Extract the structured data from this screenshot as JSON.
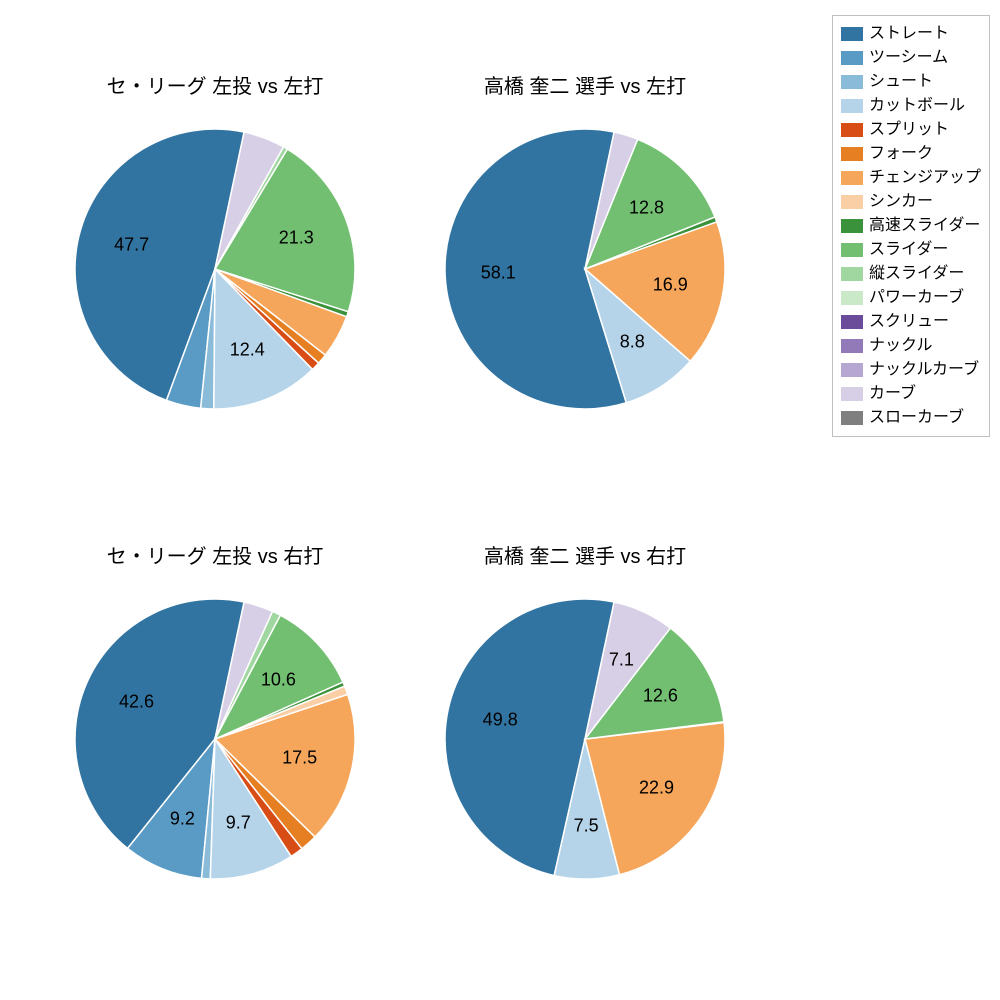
{
  "legend": {
    "items": [
      {
        "label": "ストレート",
        "color": "#3274a1"
      },
      {
        "label": "ツーシーム",
        "color": "#5a9bc5"
      },
      {
        "label": "シュート",
        "color": "#8abbd9"
      },
      {
        "label": "カットボール",
        "color": "#b5d4ea"
      },
      {
        "label": "スプリット",
        "color": "#d84c15"
      },
      {
        "label": "フォーク",
        "color": "#e67e22"
      },
      {
        "label": "チェンジアップ",
        "color": "#f5a65b"
      },
      {
        "label": "シンカー",
        "color": "#fbcfa5"
      },
      {
        "label": "高速スライダー",
        "color": "#3a923a"
      },
      {
        "label": "スライダー",
        "color": "#72bf72"
      },
      {
        "label": "縦スライダー",
        "color": "#a0d6a0"
      },
      {
        "label": "パワーカーブ",
        "color": "#c9e9c9"
      },
      {
        "label": "スクリュー",
        "color": "#6b4c9a"
      },
      {
        "label": "ナックル",
        "color": "#9279b7"
      },
      {
        "label": "ナックルカーブ",
        "color": "#b6a7d2"
      },
      {
        "label": "カーブ",
        "color": "#d6cfe6"
      },
      {
        "label": "スローカーブ",
        "color": "#7f7f7f"
      }
    ],
    "border_color": "#bfbfbf",
    "fontsize": 16
  },
  "charts": [
    {
      "title": "セ・リーグ 左投 vs 左打",
      "type": "pie",
      "startAngleDeg": 78,
      "slices": [
        {
          "value": 47.7,
          "color": "#3274a1",
          "label": "47.7",
          "showLabel": true
        },
        {
          "value": 4.0,
          "color": "#5a9bc5",
          "showLabel": false
        },
        {
          "value": 1.5,
          "color": "#8abbd9",
          "showLabel": false
        },
        {
          "value": 12.4,
          "color": "#b5d4ea",
          "label": "12.4",
          "showLabel": true
        },
        {
          "value": 1.0,
          "color": "#d84c15",
          "showLabel": false
        },
        {
          "value": 1.2,
          "color": "#e67e22",
          "showLabel": false
        },
        {
          "value": 5.0,
          "color": "#f5a65b",
          "showLabel": false
        },
        {
          "value": 0.6,
          "color": "#3a923a",
          "showLabel": false
        },
        {
          "value": 21.3,
          "color": "#72bf72",
          "label": "21.3",
          "showLabel": true
        },
        {
          "value": 0.5,
          "color": "#a0d6a0",
          "showLabel": false
        },
        {
          "value": 4.8,
          "color": "#d6cfe6",
          "showLabel": false
        }
      ]
    },
    {
      "title": "高橋 奎二 選手 vs 左打",
      "type": "pie",
      "startAngleDeg": 78,
      "slices": [
        {
          "value": 58.1,
          "color": "#3274a1",
          "label": "58.1",
          "showLabel": true
        },
        {
          "value": 8.8,
          "color": "#b5d4ea",
          "label": "8.8",
          "showLabel": true
        },
        {
          "value": 16.9,
          "color": "#f5a65b",
          "label": "16.9",
          "showLabel": true
        },
        {
          "value": 0.6,
          "color": "#3a923a",
          "showLabel": false
        },
        {
          "value": 12.8,
          "color": "#72bf72",
          "label": "12.8",
          "showLabel": true
        },
        {
          "value": 2.8,
          "color": "#d6cfe6",
          "showLabel": false
        }
      ]
    },
    {
      "title": "セ・リーグ 左投 vs 右打",
      "type": "pie",
      "startAngleDeg": 78,
      "slices": [
        {
          "value": 42.6,
          "color": "#3274a1",
          "label": "42.6",
          "showLabel": true
        },
        {
          "value": 9.2,
          "color": "#5a9bc5",
          "label": "9.2",
          "showLabel": true
        },
        {
          "value": 1.0,
          "color": "#8abbd9",
          "showLabel": false
        },
        {
          "value": 9.7,
          "color": "#b5d4ea",
          "label": "9.7",
          "showLabel": true
        },
        {
          "value": 1.5,
          "color": "#d84c15",
          "showLabel": false
        },
        {
          "value": 2.0,
          "color": "#e67e22",
          "showLabel": false
        },
        {
          "value": 17.5,
          "color": "#f5a65b",
          "label": "17.5",
          "showLabel": true
        },
        {
          "value": 1.0,
          "color": "#fbcfa5",
          "showLabel": false
        },
        {
          "value": 0.5,
          "color": "#3a923a",
          "showLabel": false
        },
        {
          "value": 10.6,
          "color": "#72bf72",
          "label": "10.6",
          "showLabel": true
        },
        {
          "value": 1.0,
          "color": "#a0d6a0",
          "showLabel": false
        },
        {
          "value": 3.4,
          "color": "#d6cfe6",
          "showLabel": false
        }
      ]
    },
    {
      "title": "高橋 奎二 選手 vs 右打",
      "type": "pie",
      "startAngleDeg": 78,
      "slices": [
        {
          "value": 49.8,
          "color": "#3274a1",
          "label": "49.8",
          "showLabel": true
        },
        {
          "value": 7.5,
          "color": "#b5d4ea",
          "label": "7.5",
          "showLabel": true
        },
        {
          "value": 22.9,
          "color": "#f5a65b",
          "label": "22.9",
          "showLabel": true
        },
        {
          "value": 0.1,
          "color": "#3a923a",
          "showLabel": false
        },
        {
          "value": 12.6,
          "color": "#72bf72",
          "label": "12.6",
          "showLabel": true
        },
        {
          "value": 7.1,
          "color": "#d6cfe6",
          "label": "7.1",
          "showLabel": true
        }
      ]
    }
  ],
  "style": {
    "background_color": "#ffffff",
    "title_fontsize": 20,
    "label_fontsize": 18,
    "pie_radius": 140,
    "label_radius_factor": 0.62,
    "slice_stroke": "#ffffff",
    "slice_stroke_width": 1.5
  }
}
